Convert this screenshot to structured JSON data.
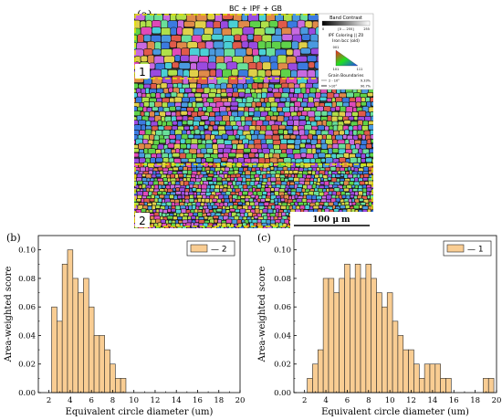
{
  "ebsd": {
    "panel_label": "(a)",
    "header": "BC + IPF + GB",
    "band_contrast_title": "Band Contrast",
    "band_contrast_min": "0",
    "band_contrast_range": "[0 ... 255]",
    "band_contrast_max": "255",
    "ipf_title": "IPF Coloring || Z0",
    "ipf_subtitle": "Iron bcc (old)",
    "ipf_corner_top": "001",
    "ipf_corner_left": "101",
    "ipf_corner_right": "111",
    "gb_title": "Grain Boundaries",
    "gb_row1_label": "2 - 10°",
    "gb_row1_value": "9.33%",
    "gb_row2_label": ">10°",
    "gb_row2_value": "90.7%",
    "region1_label": "1",
    "region2_label": "2",
    "scale_bar_label": "100 μ m",
    "colors": {
      "grain_palette": [
        "#3b7ae0",
        "#5fd24a",
        "#e04ab8",
        "#4ad0d6",
        "#9a4ae0",
        "#e0d04a",
        "#e05a4a",
        "#4a9ae0",
        "#c86ae0",
        "#6ae09a",
        "#e08a4a",
        "#b0e04a"
      ],
      "dashed_outline": "#e6e600"
    }
  },
  "chart_data": [
    {
      "type": "bar",
      "panel_label": "(b)",
      "xlabel": "Equivalent circle diameter (um)",
      "ylabel": "Area-weighted score",
      "xlim": [
        1,
        20
      ],
      "ylim": [
        0,
        0.11
      ],
      "xticks": [
        2,
        4,
        6,
        8,
        10,
        12,
        14,
        16,
        18,
        20
      ],
      "yticks": [
        0.0,
        0.02,
        0.04,
        0.06,
        0.08,
        0.1
      ],
      "ytick_labels": [
        "0.00",
        "0.02",
        "0.04",
        "0.06",
        "0.08",
        "0.10"
      ],
      "legend": "2",
      "legend_position": "top-right",
      "bar_width": 0.5,
      "x": [
        2.5,
        3.0,
        3.5,
        4.0,
        4.5,
        5.0,
        5.5,
        6.0,
        6.5,
        7.0,
        7.5,
        8.0,
        8.5,
        9.0
      ],
      "values": [
        0.06,
        0.05,
        0.09,
        0.1,
        0.08,
        0.07,
        0.08,
        0.06,
        0.04,
        0.04,
        0.03,
        0.02,
        0.01,
        0.01
      ],
      "colors": {
        "bar": "#f9cd93",
        "edge": "#2a2a2a"
      }
    },
    {
      "type": "bar",
      "panel_label": "(c)",
      "xlabel": "Equivalent circle diameter (um)",
      "ylabel": "Area-weighted score",
      "xlim": [
        1,
        20
      ],
      "ylim": [
        0,
        0.11
      ],
      "xticks": [
        2,
        4,
        6,
        8,
        10,
        12,
        14,
        16,
        18,
        20
      ],
      "yticks": [
        0.0,
        0.02,
        0.04,
        0.06,
        0.08,
        0.1
      ],
      "ytick_labels": [
        "0.00",
        "0.02",
        "0.04",
        "0.06",
        "0.08",
        "0.10"
      ],
      "legend": "1",
      "legend_position": "top-right",
      "bar_width": 0.5,
      "x": [
        2.5,
        3.0,
        3.5,
        4.0,
        4.5,
        5.0,
        5.5,
        6.0,
        6.5,
        7.0,
        7.5,
        8.0,
        8.5,
        9.0,
        9.5,
        10.0,
        10.5,
        11.0,
        11.5,
        12.0,
        12.5,
        13.0,
        13.5,
        14.0,
        14.5,
        15.0,
        15.5,
        19.0,
        19.5
      ],
      "values": [
        0.01,
        0.02,
        0.03,
        0.08,
        0.08,
        0.07,
        0.08,
        0.09,
        0.08,
        0.09,
        0.08,
        0.09,
        0.08,
        0.07,
        0.06,
        0.07,
        0.05,
        0.04,
        0.03,
        0.03,
        0.02,
        0.01,
        0.02,
        0.02,
        0.02,
        0.01,
        0.01,
        0.01,
        0.01
      ],
      "colors": {
        "bar": "#f9cd93",
        "edge": "#2a2a2a"
      }
    }
  ]
}
